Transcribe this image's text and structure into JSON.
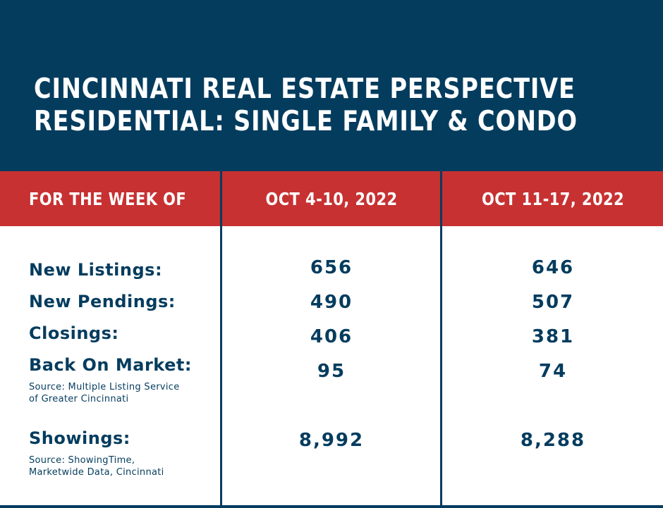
{
  "header": {
    "title_line1": "CINCINNATI REAL ESTATE PERSPECTIVE",
    "title_line2": "RESIDENTIAL: SINGLE FAMILY & CONDO"
  },
  "columns": {
    "label": "FOR THE WEEK OF",
    "week1": "OCT 4-10, 2022",
    "week2": "OCT 11-17, 2022"
  },
  "rows": [
    {
      "label": "New Listings:",
      "week1": "656",
      "week2": "646"
    },
    {
      "label": "New Pendings:",
      "week1": "490",
      "week2": "507"
    },
    {
      "label": "Closings:",
      "week1": "406",
      "week2": "381"
    },
    {
      "label": "Back On Market:",
      "week1": "95",
      "week2": "74"
    },
    {
      "label": "Showings:",
      "week1": "8,992",
      "week2": "8,288"
    }
  ],
  "sources": {
    "mls_line1": "Source: Multiple Listing Service",
    "mls_line2": "of Greater Cincinnati",
    "showings_line1": "Source: ShowingTime,",
    "showings_line2": "Marketwide Data, Cincinnati"
  },
  "colors": {
    "navy": "#043c5e",
    "red": "#c73132",
    "white": "#ffffff"
  }
}
